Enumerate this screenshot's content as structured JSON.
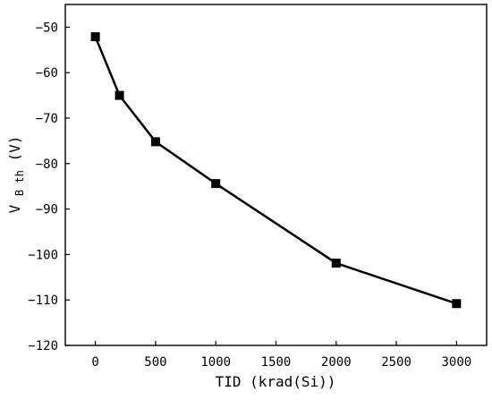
{
  "chart_data": {
    "type": "line",
    "title": "",
    "xlabel": "TID (krad(Si))",
    "ylabel": {
      "main": "V",
      "subscript": "B th",
      "suffix": "(V)"
    },
    "xlim": [
      -250,
      3250
    ],
    "ylim": [
      -120,
      -45
    ],
    "xticks": [
      0,
      500,
      1000,
      1500,
      2000,
      2500,
      3000
    ],
    "yticks": [
      -50,
      -60,
      -70,
      -80,
      -90,
      -100,
      -110,
      -120
    ],
    "grid": false,
    "legend": "none",
    "series": [
      {
        "x": [
          0,
          200,
          500,
          1000,
          2000,
          3000
        ],
        "y": [
          -52.1,
          -65.0,
          -75.2,
          -84.4,
          -101.9,
          -110.8
        ],
        "marker": "square",
        "color": "#000000"
      }
    ]
  }
}
